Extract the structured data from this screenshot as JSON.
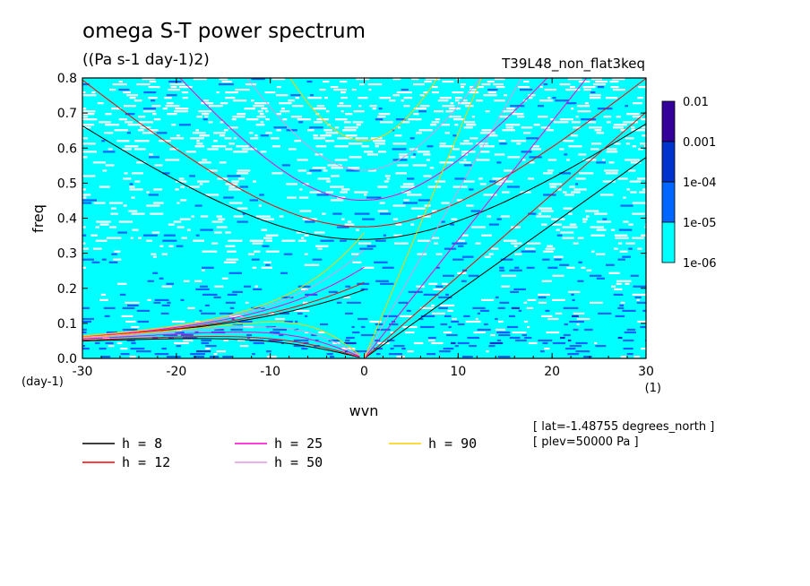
{
  "title": "omega S-T power spectrum",
  "units": "((Pa s-1 day-1)2)",
  "run_name": "T39L48_non_flat3keq",
  "info": [
    "[ lat=-1.48755 degrees_north ]",
    "[ plev=50000 Pa ]"
  ],
  "colors": {
    "bg": "#00ffff",
    "c2": "#0066ff",
    "c3": "#0033cc",
    "c4": "#330099",
    "h8": "#000000",
    "h12": "#ff0000",
    "h25": "#ff00cc",
    "h50": "#dd99dd",
    "h90": "#ffcc00"
  },
  "chart_data": {
    "type": "heatmap",
    "xlabel": "wvn",
    "ylabel": "freq",
    "x_unit": "(1)",
    "y_unit": "(day-1)",
    "xlim": [
      -30,
      30
    ],
    "ylim": [
      0,
      0.8
    ],
    "xticks": [
      "-30",
      "-20",
      "-10",
      "0",
      "10",
      "20",
      "30"
    ],
    "yticks": [
      "0.0",
      "0.1",
      "0.2",
      "0.3",
      "0.4",
      "0.5",
      "0.6",
      "0.7",
      "0.8"
    ],
    "colorbar": {
      "labels": [
        "0.01",
        "0.001",
        "1e-04",
        "1e-05",
        "1e-06"
      ],
      "colors": [
        "#330099",
        "#0033cc",
        "#0066ff",
        "#00ffff"
      ]
    },
    "dispersion_curves": [
      {
        "name": "h =  8",
        "h": 8
      },
      {
        "name": "h = 12",
        "h": 12
      },
      {
        "name": "h = 25",
        "h": 25
      },
      {
        "name": "h = 50",
        "h": 50
      },
      {
        "name": "h = 90",
        "h": 90
      }
    ]
  }
}
